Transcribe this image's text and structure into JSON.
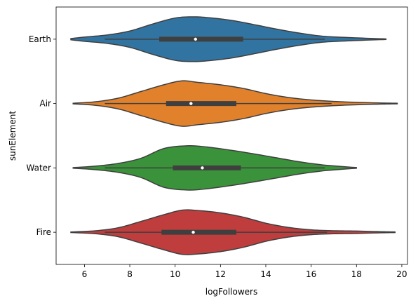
{
  "chart_data": {
    "type": "violin",
    "orientation": "horizontal",
    "title": "",
    "xlabel": "logFollowers",
    "ylabel": "sunElement",
    "xlim": [
      4.75,
      20.25
    ],
    "xticks": [
      6,
      8,
      10,
      12,
      14,
      16,
      18,
      20
    ],
    "categories": [
      "Earth",
      "Air",
      "Water",
      "Fire"
    ],
    "series": [
      {
        "category": "Earth",
        "color": "#3274a1",
        "extent": [
          5.4,
          19.3
        ],
        "whisker": [
          6.9,
          16.6
        ],
        "q1": 9.3,
        "median": 10.9,
        "q3": 13.0,
        "density": [
          [
            5.4,
            0.02
          ],
          [
            6.0,
            0.07
          ],
          [
            7.0,
            0.14
          ],
          [
            8.0,
            0.27
          ],
          [
            9.0,
            0.5
          ],
          [
            10.0,
            0.7
          ],
          [
            10.8,
            0.74
          ],
          [
            11.5,
            0.71
          ],
          [
            12.5,
            0.62
          ],
          [
            13.5,
            0.48
          ],
          [
            14.5,
            0.33
          ],
          [
            15.5,
            0.2
          ],
          [
            16.5,
            0.1
          ],
          [
            17.5,
            0.06
          ],
          [
            18.5,
            0.03
          ],
          [
            19.3,
            0.01
          ]
        ]
      },
      {
        "category": "Air",
        "color": "#e1812c",
        "extent": [
          5.5,
          19.8
        ],
        "whisker": [
          6.9,
          16.9
        ],
        "q1": 9.6,
        "median": 10.7,
        "q3": 12.7,
        "density": [
          [
            5.5,
            0.01
          ],
          [
            6.5,
            0.06
          ],
          [
            7.5,
            0.18
          ],
          [
            8.5,
            0.4
          ],
          [
            9.5,
            0.62
          ],
          [
            10.3,
            0.75
          ],
          [
            11.0,
            0.7
          ],
          [
            12.0,
            0.62
          ],
          [
            13.0,
            0.5
          ],
          [
            14.0,
            0.33
          ],
          [
            15.0,
            0.2
          ],
          [
            16.0,
            0.12
          ],
          [
            17.0,
            0.07
          ],
          [
            18.0,
            0.04
          ],
          [
            19.0,
            0.02
          ],
          [
            19.8,
            0.01
          ]
        ]
      },
      {
        "category": "Water",
        "color": "#3a923a",
        "extent": [
          5.5,
          18.0
        ],
        "whisker": [
          6.9,
          16.6
        ],
        "q1": 9.9,
        "median": 11.2,
        "q3": 12.9,
        "density": [
          [
            5.5,
            0.01
          ],
          [
            6.5,
            0.06
          ],
          [
            7.5,
            0.15
          ],
          [
            8.5,
            0.32
          ],
          [
            9.5,
            0.64
          ],
          [
            10.5,
            0.73
          ],
          [
            11.3,
            0.7
          ],
          [
            12.5,
            0.58
          ],
          [
            13.5,
            0.46
          ],
          [
            14.5,
            0.33
          ],
          [
            15.5,
            0.2
          ],
          [
            16.5,
            0.1
          ],
          [
            17.3,
            0.05
          ],
          [
            18.0,
            0.01
          ]
        ]
      },
      {
        "category": "Fire",
        "color": "#c03d3e",
        "extent": [
          5.4,
          19.7
        ],
        "whisker": [
          6.9,
          16.7
        ],
        "q1": 9.4,
        "median": 10.8,
        "q3": 12.7,
        "density": [
          [
            5.4,
            0.01
          ],
          [
            6.5,
            0.05
          ],
          [
            7.5,
            0.15
          ],
          [
            8.5,
            0.36
          ],
          [
            9.5,
            0.58
          ],
          [
            10.3,
            0.73
          ],
          [
            11.0,
            0.72
          ],
          [
            12.0,
            0.64
          ],
          [
            13.0,
            0.5
          ],
          [
            14.0,
            0.3
          ],
          [
            15.0,
            0.16
          ],
          [
            16.0,
            0.08
          ],
          [
            17.0,
            0.05
          ],
          [
            18.0,
            0.04
          ],
          [
            19.0,
            0.02
          ],
          [
            19.7,
            0.01
          ]
        ]
      }
    ],
    "grid": false,
    "legend": "none"
  }
}
